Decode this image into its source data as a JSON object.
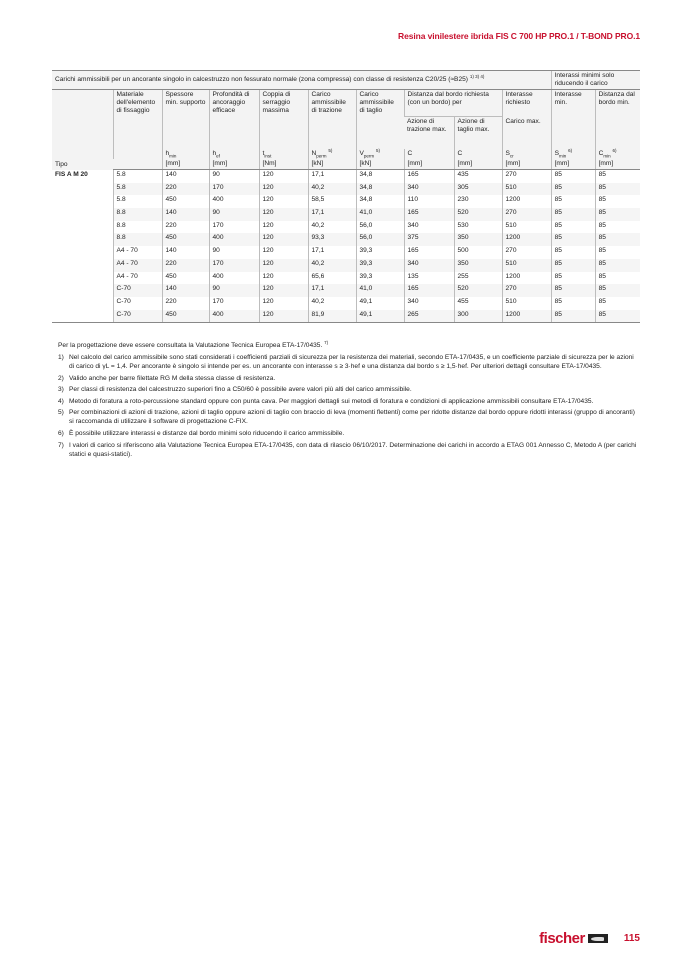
{
  "running_head": "Resina vinilestere ibrida FIS C 700 HP PRO.1 / T-BOND PRO.1",
  "table": {
    "title": "Carichi ammissibili per un ancorante singolo in calcestruzzo non fessurato normale (zona compressa) con classe di resistenza C20/25 (≈B25)",
    "title_refs": "1) 3) 4)",
    "group_right": "Interassi minimi solo riducendo il carico",
    "headers": {
      "tipo": "Tipo",
      "materiale": "Materiale dell'elemento di fissaggio",
      "spessore": "Spessore min. supporto",
      "profondita": "Profondità di ancoraggio efficace",
      "coppia": "Coppia di serraggio massima",
      "carico_trazione": "Carico ammissibile di trazione",
      "carico_taglio": "Carico ammissibile di taglio",
      "distanza": "Distanza dal bordo richiesta (con un bordo) per",
      "azione_trazione": "Azione di trazione max.",
      "azione_taglio": "Azione di taglio max.",
      "interasse": "Interasse richiesto",
      "carico_max": "Carico max.",
      "interasse_min": "Interasse min.",
      "distanza_min": "Distanza dal bordo min."
    },
    "symbols": {
      "h_min": {
        "base": "h",
        "sub": "min"
      },
      "h_ef": {
        "base": "h",
        "sub": "ef"
      },
      "t_inst": {
        "base": "t",
        "sub": "inst"
      },
      "n_perm": {
        "base": "N",
        "sub": "perm",
        "sup": "5)"
      },
      "v_perm": {
        "base": "V",
        "sub": "perm",
        "sup": "5)"
      },
      "c1": {
        "base": "C"
      },
      "c2": {
        "base": "C"
      },
      "s_cr": {
        "base": "S",
        "sub": "cr"
      },
      "s_min": {
        "base": "S",
        "sub": "min",
        "sup": "6)"
      },
      "c_min": {
        "base": "C",
        "sub": "min",
        "sup": "6)"
      }
    },
    "units": [
      "[mm]",
      "[mm]",
      "[Nm]",
      "[kN]",
      "[kN]",
      "[mm]",
      "[mm]",
      "[mm]",
      "[mm]",
      "[mm]"
    ],
    "tipo_value": "FIS A M 20",
    "rows": [
      [
        "5.8",
        "140",
        "90",
        "120",
        "17,1",
        "34,8",
        "165",
        "435",
        "270",
        "85",
        "85"
      ],
      [
        "5.8",
        "220",
        "170",
        "120",
        "40,2",
        "34,8",
        "340",
        "305",
        "510",
        "85",
        "85"
      ],
      [
        "5.8",
        "450",
        "400",
        "120",
        "58,5",
        "34,8",
        "110",
        "230",
        "1200",
        "85",
        "85"
      ],
      [
        "8.8",
        "140",
        "90",
        "120",
        "17,1",
        "41,0",
        "165",
        "520",
        "270",
        "85",
        "85"
      ],
      [
        "8.8",
        "220",
        "170",
        "120",
        "40,2",
        "56,0",
        "340",
        "530",
        "510",
        "85",
        "85"
      ],
      [
        "8.8",
        "450",
        "400",
        "120",
        "93,3",
        "56,0",
        "375",
        "350",
        "1200",
        "85",
        "85"
      ],
      [
        "A4 - 70",
        "140",
        "90",
        "120",
        "17,1",
        "39,3",
        "165",
        "500",
        "270",
        "85",
        "85"
      ],
      [
        "A4 - 70",
        "220",
        "170",
        "120",
        "40,2",
        "39,3",
        "340",
        "350",
        "510",
        "85",
        "85"
      ],
      [
        "A4 - 70",
        "450",
        "400",
        "120",
        "65,6",
        "39,3",
        "135",
        "255",
        "1200",
        "85",
        "85"
      ],
      [
        "C-70",
        "140",
        "90",
        "120",
        "17,1",
        "41,0",
        "165",
        "520",
        "270",
        "85",
        "85"
      ],
      [
        "C-70",
        "220",
        "170",
        "120",
        "40,2",
        "49,1",
        "340",
        "455",
        "510",
        "85",
        "85"
      ],
      [
        "C-70",
        "450",
        "400",
        "120",
        "81,9",
        "49,1",
        "265",
        "300",
        "1200",
        "85",
        "85"
      ]
    ]
  },
  "notes": {
    "intro": "Per la progettazione deve essere consultata la Valutazione Tecnica Europea ETA-17/0435.",
    "intro_ref": "7)",
    "items": [
      {
        "num": "1)",
        "text": "Nel calcolo del carico ammissibile sono stati considerati i coefficienti parziali di sicurezza per la resistenza dei materiali, secondo ETA-17/0435, e un coefficiente parziale di sicurezza per le azioni di carico di γL = 1,4. Per ancorante è singolo si intende per es. un ancorante con interasse s ≥ 3·hef e una distanza dal bordo s ≥ 1,5·hef. Per ulteriori dettagli consultare ETA-17/0435."
      },
      {
        "num": "2)",
        "text": "Valido anche per barre filettate RG M della stessa classe di resistenza."
      },
      {
        "num": "3)",
        "text": "Per classi di resistenza del calcestruzzo superiori fino a C50/60 è possibile avere valori più alti del carico ammissibile."
      },
      {
        "num": "4)",
        "text": "Metodo di foratura a roto-percussione standard oppure con punta cava. Per maggiori dettagli sui metodi di foratura e condizioni di applicazione ammissibili consultare ETA-17/0435."
      },
      {
        "num": "5)",
        "text": "Per combinazioni di azioni di trazione, azioni di taglio oppure azioni di taglio con braccio di leva (momenti flettenti) come per ridotte distanze dal bordo oppure ridotti interassi (gruppo di ancoranti) si raccomanda di utilizzare il software di progettazione C-FIX."
      },
      {
        "num": "6)",
        "text": "È possibile utilizzare interassi e distanze dal bordo minimi solo riducendo il carico ammissibile."
      },
      {
        "num": "7)",
        "text": "I valori di carico si riferiscono alla Valutazione Tecnica Europea ETA-17/0435, con data di rilascio 06/10/2017. Determinazione dei carichi in accordo a ETAG 001 Annesso C, Metodo A (per carichi statici e quasi-statici)."
      }
    ]
  },
  "footer": {
    "logo_text": "fischer",
    "page_number": "115"
  },
  "colors": {
    "brand_red": "#c8102e"
  }
}
